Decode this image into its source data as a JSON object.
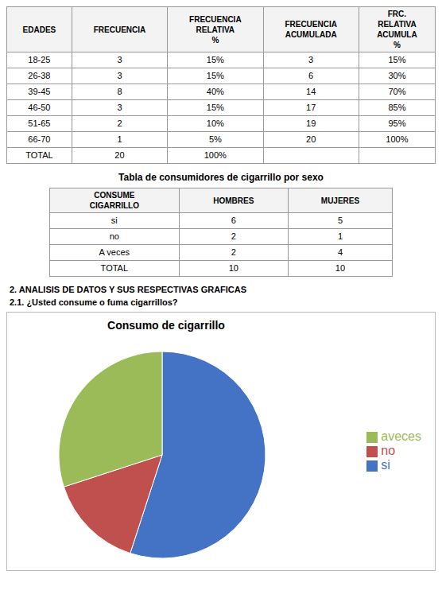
{
  "chart_data": [
    {
      "type": "table",
      "columns": [
        "EDADES",
        "FRECUENCIA",
        "FRECUENCIA\nRELATIVA\n%",
        "FRECUENCIA\nACUMULADA",
        "FRC.\nRELATIVA\nACUMULA\n%"
      ],
      "rows": [
        [
          "18-25",
          "3",
          "15%",
          "3",
          "15%"
        ],
        [
          "26-38",
          "3",
          "15%",
          "6",
          "30%"
        ],
        [
          "39-45",
          "8",
          "40%",
          "14",
          "70%"
        ],
        [
          "46-50",
          "3",
          "15%",
          "17",
          "85%"
        ],
        [
          "51-65",
          "2",
          "10%",
          "19",
          "95%"
        ],
        [
          "66-70",
          "1",
          "5%",
          "20",
          "100%"
        ],
        [
          "TOTAL",
          "20",
          "100%",
          "",
          ""
        ]
      ]
    },
    {
      "type": "table",
      "title": "Tabla de consumidores de cigarrillo por sexo",
      "columns": [
        "CONSUME\nCIGARRILLO",
        "HOMBRES",
        "MUJERES"
      ],
      "rows": [
        [
          "si",
          "6",
          "5"
        ],
        [
          "no",
          "2",
          "1"
        ],
        [
          "A veces",
          "2",
          "4"
        ],
        [
          "TOTAL",
          "10",
          "10"
        ]
      ]
    },
    {
      "type": "pie",
      "annotations": [
        "2.  ANALISIS DE DATOS Y SUS RESPECTIVAS GRAFICAS",
        "2.1. ¿Usted consume o fuma cigarrillos?"
      ],
      "title": "Consumo de cigarrillo",
      "categories": [
        "si",
        "no",
        "aveces"
      ],
      "values": [
        11,
        3,
        6
      ],
      "colors": [
        "#4472c4",
        "#c0504d",
        "#9bbb59"
      ],
      "legend": "right"
    }
  ]
}
